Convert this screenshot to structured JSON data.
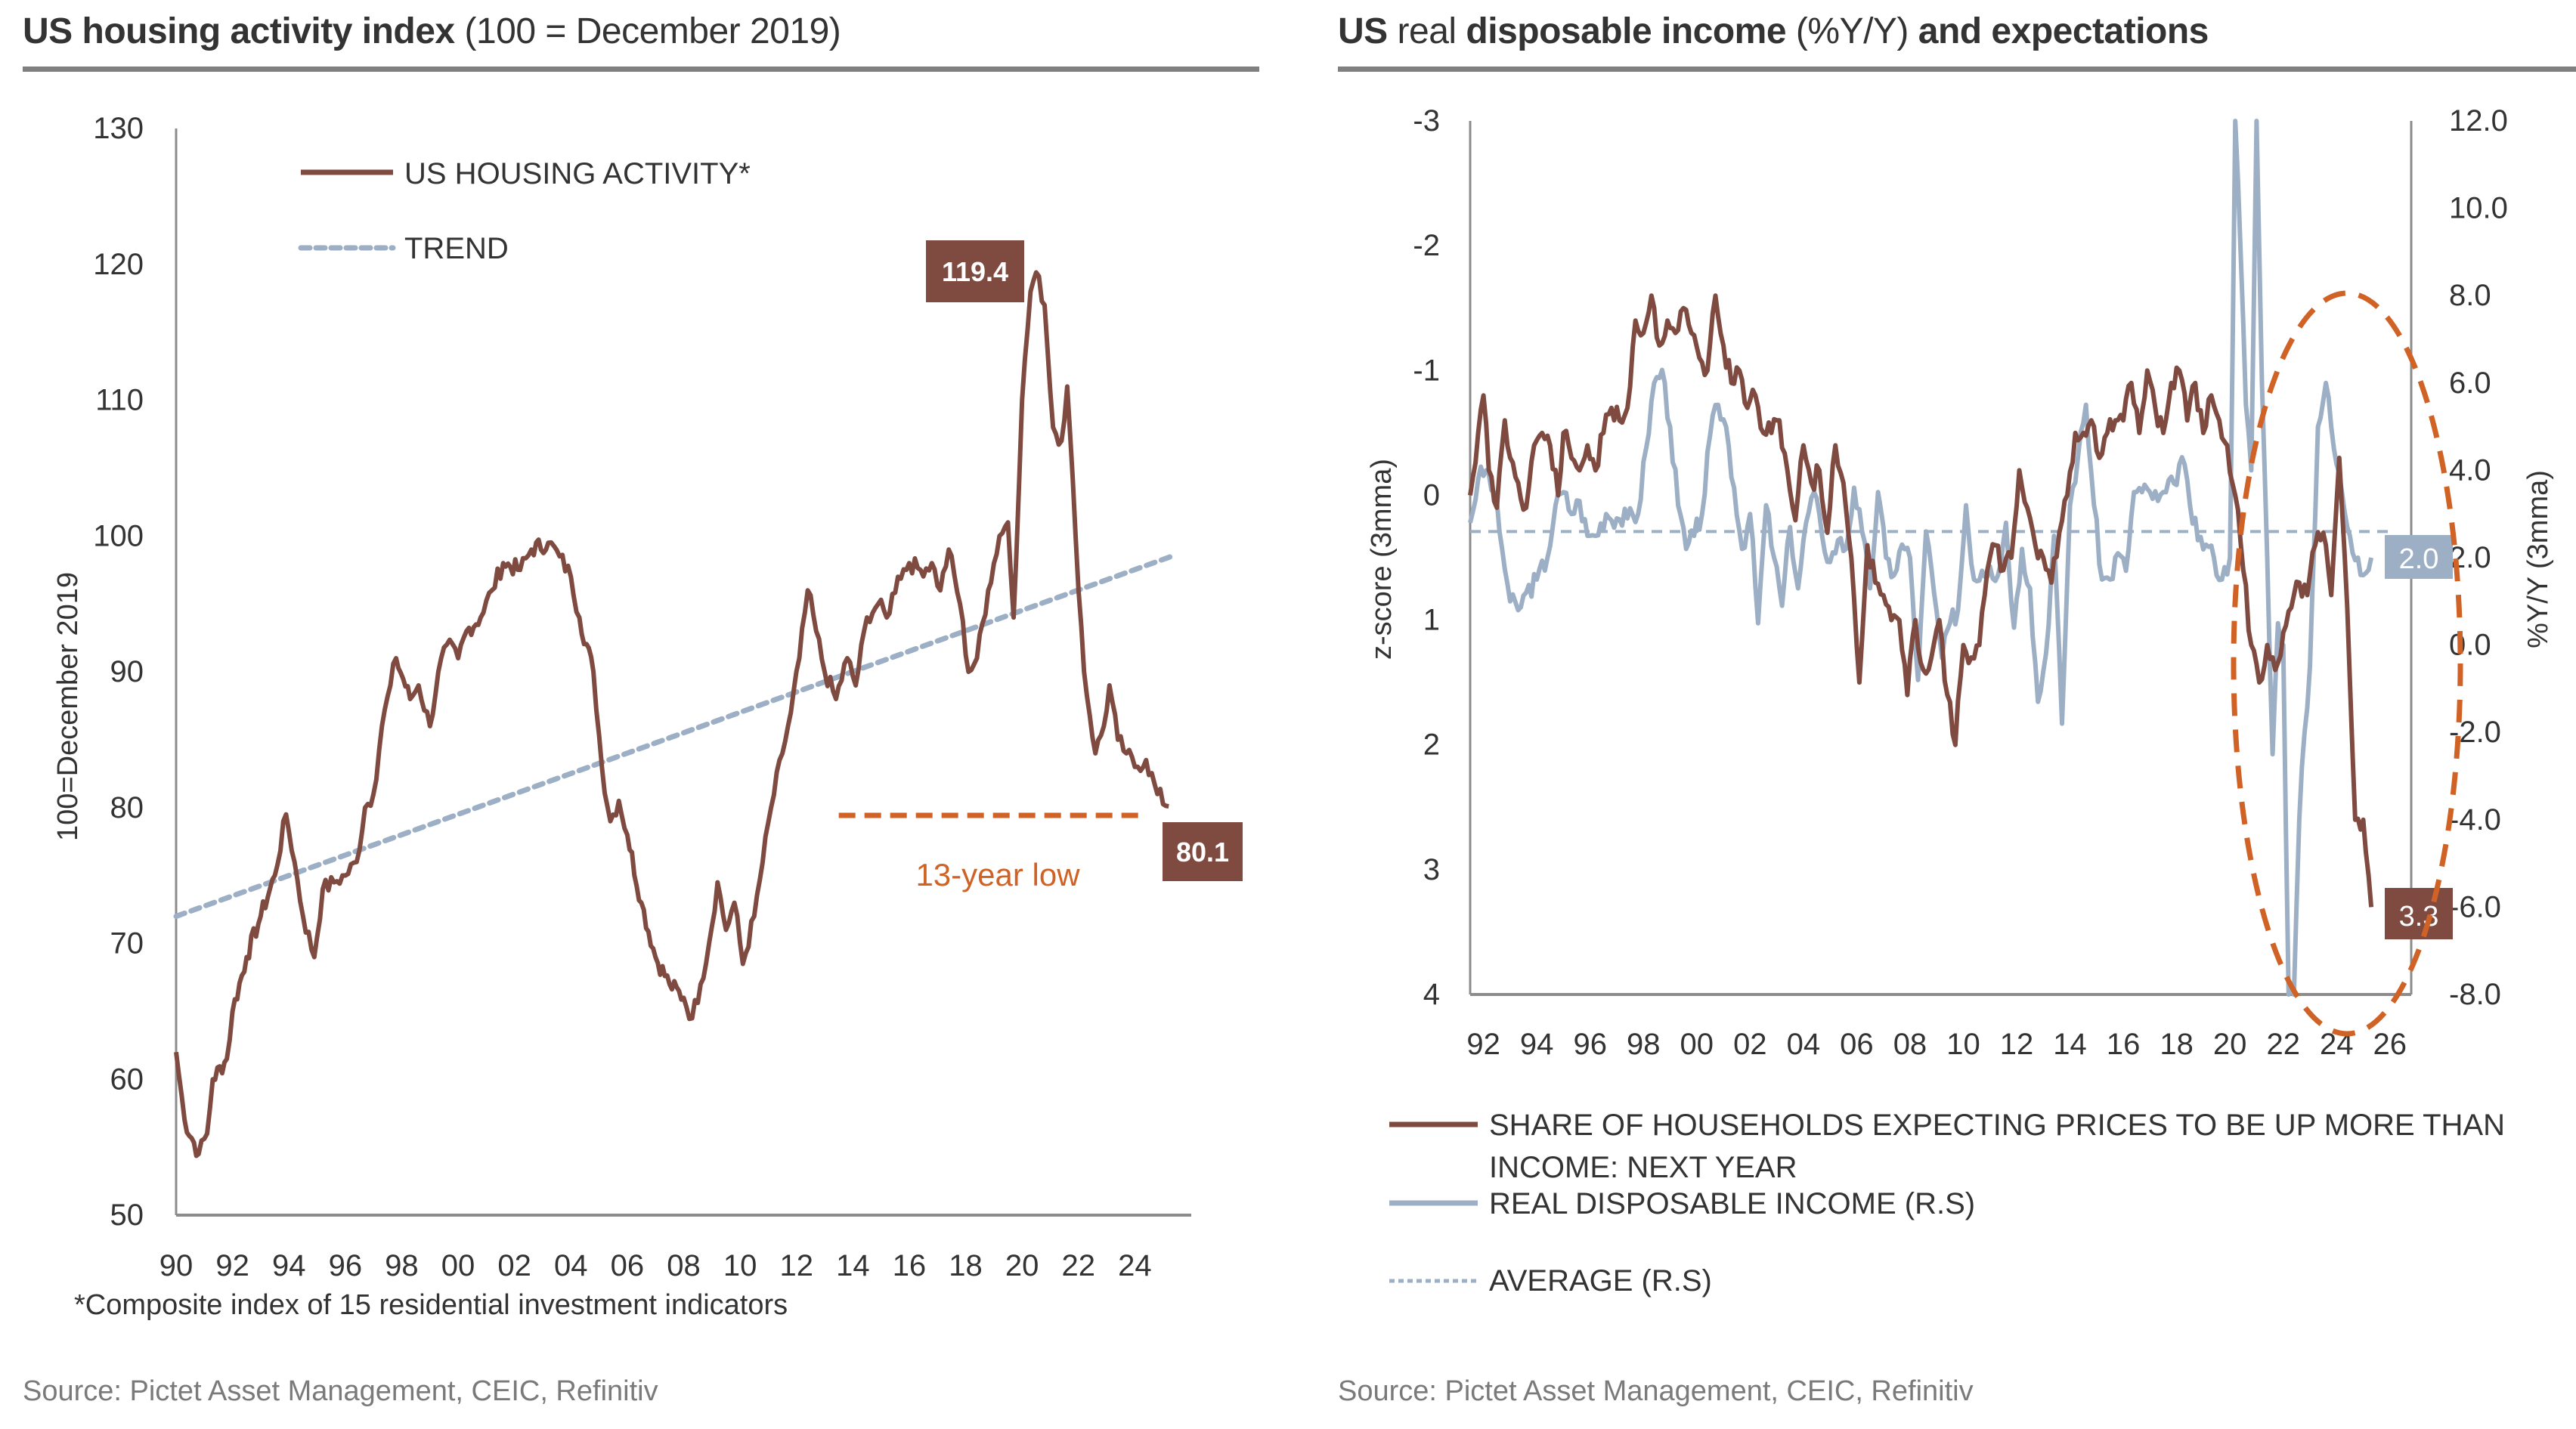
{
  "left_panel": {
    "title_bold": "US housing activity index",
    "title_light": "(100 = December 2019)",
    "footnote": "*Composite index of 15 residential investment indicators",
    "source": "Source: Pictet Asset Management, CEIC, Refinitiv"
  },
  "right_panel": {
    "title_bold_1": "US",
    "title_light_1": "real",
    "title_bold_2": "disposable income",
    "title_light_2": "(%Y/Y)",
    "title_bold_3": "and expectations",
    "source": "Source: Pictet Asset Management, CEIC, Refinitiv"
  },
  "colors": {
    "brown": "#7f4a40",
    "blue_grey": "#9cafc5",
    "orange": "#cf6224",
    "axis": "#8c8c8c",
    "text": "#333333"
  },
  "chart_data": [
    {
      "type": "line",
      "title": "US housing activity index (100 = December 2019)",
      "xlabel": "",
      "ylabel": "100=December 2019",
      "ylim": [
        50,
        130
      ],
      "xlim": [
        1990,
        2026
      ],
      "yticks": [
        "50",
        "60",
        "70",
        "80",
        "90",
        "100",
        "110",
        "120",
        "130"
      ],
      "xticks": [
        "90",
        "92",
        "94",
        "96",
        "98",
        "00",
        "02",
        "04",
        "06",
        "08",
        "10",
        "12",
        "14",
        "16",
        "18",
        "20",
        "22",
        "24"
      ],
      "grid": false,
      "legend_position": "top-left",
      "series": [
        {
          "name": "US HOUSING ACTIVITY*",
          "style": "solid",
          "x": [
            1990.0,
            1990.3,
            1990.8,
            1991.1,
            1991.3,
            1991.8,
            1992.0,
            1992.5,
            1993.0,
            1993.5,
            1993.9,
            1994.2,
            1994.5,
            1994.9,
            1995.2,
            1995.6,
            1996.0,
            1996.4,
            1996.7,
            1997.0,
            1997.3,
            1997.6,
            1997.8,
            1998.3,
            1998.6,
            1999.0,
            1999.3,
            1999.6,
            2000.0,
            2000.3,
            2000.8,
            2001.2,
            2001.6,
            2002.2,
            2002.6,
            2003.2,
            2003.6,
            2004.0,
            2004.3,
            2004.8,
            2005.1,
            2005.4,
            2005.7,
            2006.0,
            2006.5,
            2007.0,
            2007.5,
            2008.0,
            2008.3,
            2008.6,
            2008.9,
            2009.2,
            2009.5,
            2009.8,
            2010.1,
            2010.5,
            2010.8,
            2011.1,
            2011.5,
            2011.8,
            2012.1,
            2012.4,
            2012.7,
            2013.0,
            2013.4,
            2013.8,
            2014.1,
            2014.5,
            2014.9,
            2015.2,
            2015.6,
            2016.0,
            2016.4,
            2016.8,
            2017.1,
            2017.4,
            2017.8,
            2018.1,
            2018.4,
            2018.8,
            2019.2,
            2019.5,
            2019.7,
            2020.0,
            2020.3,
            2020.5,
            2020.8,
            2021.1,
            2021.4,
            2021.6,
            2021.9,
            2022.2,
            2022.6,
            2022.9,
            2023.1,
            2023.4,
            2023.7,
            2024.0,
            2024.4,
            2024.8,
            2025.2
          ],
          "y": [
            62,
            57,
            54.5,
            56,
            60,
            61.5,
            65,
            69,
            72,
            75,
            79.5,
            76,
            72,
            69,
            74,
            74.5,
            75,
            76,
            80,
            81,
            86,
            89,
            91,
            88,
            89,
            86,
            90,
            92,
            91,
            93,
            94,
            96,
            98,
            97.5,
            99,
            99.5,
            98.5,
            97,
            94,
            90,
            83,
            79,
            80.5,
            78,
            73,
            69,
            67,
            66,
            64.5,
            67,
            70,
            74.5,
            71,
            73,
            68.5,
            72,
            76,
            80,
            84,
            87,
            91,
            96,
            93,
            90,
            88,
            91,
            89,
            94,
            95,
            94,
            97,
            98,
            97.5,
            98,
            96,
            99,
            95,
            90,
            91,
            96,
            100,
            101,
            94,
            110,
            118,
            119.4,
            117,
            108,
            107,
            111,
            100,
            90,
            84,
            86,
            89,
            85,
            84,
            83,
            83.5,
            81,
            80.1
          ]
        },
        {
          "name": "TREND",
          "style": "dashed",
          "x": [
            1990,
            2025.3
          ],
          "y": [
            72,
            98.5
          ]
        }
      ],
      "annotations": [
        {
          "text": "119.4",
          "x": 2020.5,
          "y": 119.4,
          "kind": "value-box"
        },
        {
          "text": "80.1",
          "x": 2025.2,
          "y": 80.1,
          "kind": "value-box"
        },
        {
          "text": "13-year low",
          "kind": "reference-line",
          "y": 79.4,
          "x_from": 2013.5,
          "x_to": 2024.8
        }
      ]
    },
    {
      "type": "line",
      "title": "US real disposable income (%Y/Y) and expectations",
      "xlabel": "",
      "ylabel_left": "z-score (3mma)",
      "ylabel_right": "%Y/Y (3mma)",
      "ylim_left": [
        -3,
        4
      ],
      "ylim_left_inverted": true,
      "ylim_right": [
        -8,
        12
      ],
      "xlim": [
        1991.5,
        2026.8
      ],
      "yticks_left": [
        "-3",
        "-2",
        "-1",
        "0",
        "1",
        "2",
        "3",
        "4"
      ],
      "yticks_right": [
        "12.0",
        "10.0",
        "8.0",
        "6.0",
        "4.0",
        "2.0",
        "0.0",
        "-2.0",
        "-4.0",
        "-6.0",
        "-8.0"
      ],
      "xticks": [
        "92",
        "94",
        "96",
        "98",
        "00",
        "02",
        "04",
        "06",
        "08",
        "10",
        "12",
        "14",
        "16",
        "18",
        "20",
        "22",
        "24",
        "26"
      ],
      "grid": false,
      "legend_position": "bottom",
      "series": [
        {
          "name": "SHARE OF HOUSEHOLDS EXPECTING PRICES TO BE UP MORE THAN INCOME: NEXT YEAR",
          "axis": "left",
          "style": "solid",
          "x": [
            1991.5,
            1991.8,
            1992.0,
            1992.2,
            1992.5,
            1992.8,
            1993.0,
            1993.3,
            1993.6,
            1993.9,
            1994.2,
            1994.5,
            1994.8,
            1995.0,
            1995.3,
            1995.6,
            1995.9,
            1996.2,
            1996.5,
            1996.8,
            1997.1,
            1997.4,
            1997.7,
            1998.0,
            1998.3,
            1998.6,
            1998.9,
            1999.2,
            1999.5,
            1999.8,
            2000.1,
            2000.4,
            2000.7,
            2001.0,
            2001.3,
            2001.6,
            2001.9,
            2002.2,
            2002.5,
            2002.8,
            2003.1,
            2003.4,
            2003.7,
            2004.0,
            2004.3,
            2004.6,
            2004.9,
            2005.2,
            2005.5,
            2005.8,
            2006.1,
            2006.4,
            2006.7,
            2007.0,
            2007.3,
            2007.6,
            2007.9,
            2008.2,
            2008.5,
            2008.8,
            2009.1,
            2009.4,
            2009.7,
            2010.0,
            2010.3,
            2010.6,
            2010.9,
            2011.2,
            2011.5,
            2011.8,
            2012.1,
            2012.4,
            2012.7,
            2013.0,
            2013.3,
            2013.6,
            2013.9,
            2014.2,
            2014.5,
            2014.8,
            2015.1,
            2015.4,
            2015.7,
            2016.0,
            2016.3,
            2016.6,
            2016.9,
            2017.2,
            2017.5,
            2017.8,
            2018.1,
            2018.4,
            2018.7,
            2019.0,
            2019.3,
            2019.6,
            2019.9,
            2020.2,
            2020.5,
            2020.8,
            2021.1,
            2021.4,
            2021.7,
            2022.0,
            2022.3,
            2022.6,
            2022.9,
            2023.2,
            2023.5,
            2023.8,
            2024.1,
            2024.4,
            2024.7,
            2025.0,
            2025.3
          ],
          "y": [
            0.0,
            -0.5,
            -0.8,
            -0.2,
            0.1,
            -0.6,
            -0.3,
            -0.1,
            0.1,
            -0.4,
            -0.5,
            -0.4,
            0.0,
            -0.5,
            -0.3,
            -0.2,
            -0.4,
            -0.2,
            -0.5,
            -0.7,
            -0.6,
            -0.7,
            -1.4,
            -1.3,
            -1.6,
            -1.2,
            -1.4,
            -1.3,
            -1.5,
            -1.3,
            -1.1,
            -1.0,
            -1.6,
            -1.2,
            -0.9,
            -1.0,
            -0.7,
            -0.8,
            -0.5,
            -0.5,
            -0.6,
            -0.2,
            0.2,
            -0.4,
            -0.1,
            -0.2,
            0.3,
            -0.4,
            -0.1,
            0.5,
            1.5,
            0.4,
            0.7,
            0.8,
            1.0,
            1.0,
            1.6,
            1.0,
            1.4,
            1.3,
            1.0,
            1.6,
            2.0,
            1.2,
            1.3,
            1.2,
            0.6,
            0.4,
            0.6,
            0.5,
            -0.2,
            0.1,
            0.4,
            0.5,
            0.7,
            0.3,
            0.0,
            -0.5,
            -0.5,
            -0.6,
            -0.3,
            -0.5,
            -0.6,
            -0.6,
            -0.9,
            -0.5,
            -1.0,
            -0.7,
            -0.5,
            -0.9,
            -1.0,
            -0.6,
            -0.9,
            -0.5,
            -0.8,
            -0.6,
            -0.4,
            0.0,
            0.6,
            1.2,
            1.5,
            1.2,
            1.4,
            1.1,
            0.9,
            0.7,
            0.8,
            0.4,
            0.3,
            0.8,
            -0.3,
            0.9,
            2.6,
            2.6,
            3.3
          ]
        },
        {
          "name": "REAL DISPOSABLE INCOME (R.S)",
          "axis": "right",
          "style": "solid",
          "x": [
            1991.5,
            1991.8,
            1992.1,
            1992.4,
            1992.7,
            1993.0,
            1993.3,
            1993.6,
            1994.0,
            1994.4,
            1994.7,
            1995.0,
            1995.3,
            1995.6,
            1995.9,
            1996.2,
            1996.6,
            1997.0,
            1997.4,
            1997.8,
            1998.1,
            1998.4,
            1998.7,
            1999.0,
            1999.3,
            1999.6,
            1999.9,
            2000.2,
            2000.5,
            2000.8,
            2001.1,
            2001.4,
            2001.7,
            2002.0,
            2002.3,
            2002.6,
            2002.9,
            2003.2,
            2003.5,
            2003.8,
            2004.1,
            2004.4,
            2004.7,
            2005.0,
            2005.3,
            2005.6,
            2005.9,
            2006.2,
            2006.5,
            2006.8,
            2007.1,
            2007.4,
            2007.7,
            2008.0,
            2008.3,
            2008.6,
            2008.9,
            2009.2,
            2009.5,
            2009.8,
            2010.1,
            2010.4,
            2010.7,
            2011.0,
            2011.3,
            2011.6,
            2011.9,
            2012.2,
            2012.5,
            2012.8,
            2013.1,
            2013.4,
            2013.7,
            2014.0,
            2014.3,
            2014.6,
            2014.9,
            2015.2,
            2015.5,
            2015.8,
            2016.1,
            2016.4,
            2016.7,
            2017.0,
            2017.3,
            2017.6,
            2017.9,
            2018.2,
            2018.5,
            2018.8,
            2019.1,
            2019.4,
            2019.7,
            2020.0,
            2020.2,
            2020.4,
            2020.6,
            2020.8,
            2021.0,
            2021.2,
            2021.4,
            2021.6,
            2021.8,
            2022.0,
            2022.2,
            2022.4,
            2022.6,
            2022.8,
            2023.0,
            2023.3,
            2023.6,
            2023.9,
            2024.2,
            2024.5,
            2024.8,
            2025.0,
            2025.3
          ],
          "y": [
            2.8,
            3.8,
            4.0,
            3.5,
            2.2,
            1.0,
            0.8,
            1.2,
            1.5,
            2.0,
            3.2,
            3.5,
            3.0,
            3.3,
            2.5,
            2.5,
            3.0,
            2.9,
            2.9,
            3.0,
            4.5,
            6.0,
            6.3,
            5.0,
            3.2,
            2.2,
            2.5,
            3.0,
            4.8,
            5.5,
            5.0,
            3.6,
            2.2,
            3.0,
            0.5,
            3.2,
            2.0,
            0.9,
            2.7,
            1.3,
            2.8,
            3.5,
            2.5,
            1.9,
            2.4,
            2.2,
            3.6,
            2.6,
            1.3,
            3.5,
            2.0,
            1.6,
            2.3,
            2.0,
            -0.8,
            2.6,
            1.2,
            -0.3,
            0.5,
            0.8,
            3.2,
            1.5,
            1.7,
            1.8,
            1.6,
            2.8,
            0.4,
            2.2,
            1.3,
            -1.3,
            -0.2,
            2.5,
            -1.8,
            3.2,
            4.3,
            5.5,
            3.2,
            1.5,
            1.5,
            2.1,
            1.7,
            3.5,
            3.5,
            3.5,
            3.3,
            3.5,
            3.7,
            4.3,
            3.2,
            2.4,
            2.3,
            2.0,
            1.5,
            2.0,
            12.0,
            9.0,
            5.5,
            4.0,
            12.0,
            6.0,
            2.0,
            -2.5,
            0.5,
            0.0,
            -8.0,
            -8.0,
            -4.0,
            -2.0,
            -0.5,
            5.0,
            6.0,
            4.5,
            3.5,
            2.5,
            2.0,
            1.6,
            2.0
          ]
        },
        {
          "name": "AVERAGE (R.S)",
          "axis": "right",
          "style": "dashed",
          "x": [
            1991.5,
            2026.2
          ],
          "y": [
            2.6,
            2.6
          ]
        }
      ],
      "annotations": [
        {
          "text": "2.0",
          "axis": "right",
          "y": 2.0,
          "kind": "value-box",
          "color": "blue_grey"
        },
        {
          "text": "3.3",
          "axis": "left",
          "y": 3.3,
          "kind": "value-box",
          "color": "brown"
        },
        {
          "kind": "highlight-ellipse",
          "x_from": 2020.2,
          "x_to": 2027.0,
          "y_top_right": 8.0,
          "y_bottom_right": -9.5
        }
      ]
    }
  ]
}
